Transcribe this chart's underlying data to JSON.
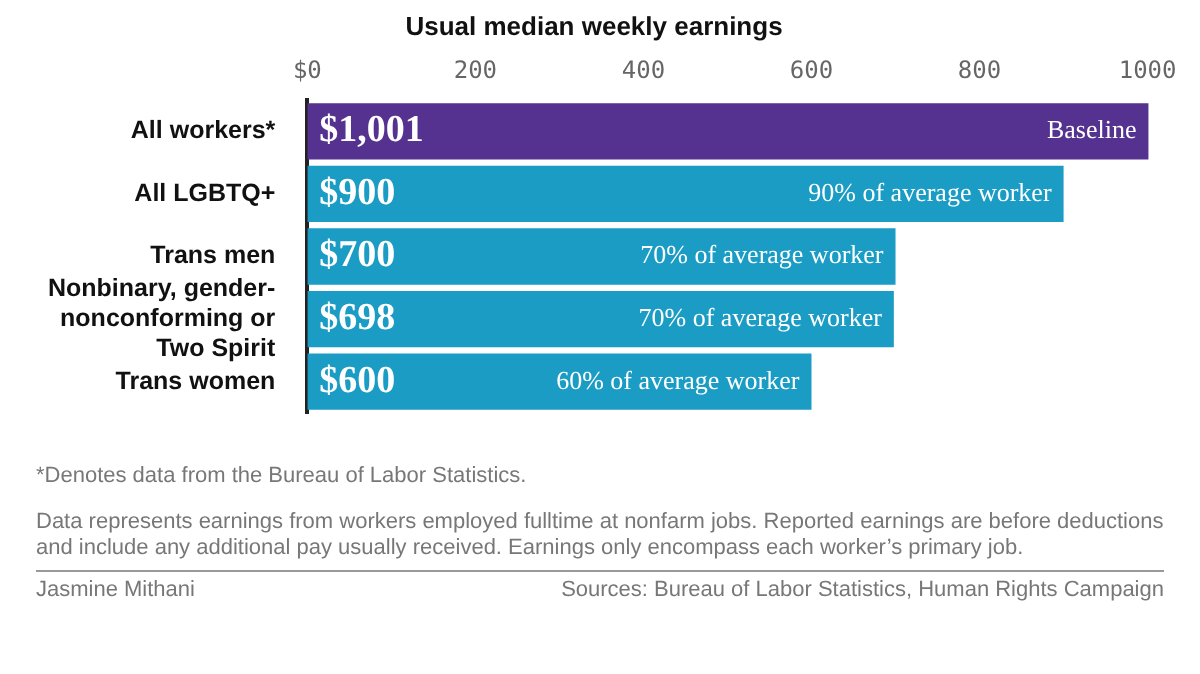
{
  "chart_data": {
    "type": "bar",
    "orientation": "horizontal",
    "title": "Usual median weekly earnings",
    "categories": [
      "All workers*",
      "All LGBTQ+",
      "Trans men",
      "Nonbinary, gender-nonconforming or Two Spirit",
      "Trans women"
    ],
    "values": [
      1001,
      900,
      700,
      698,
      600
    ],
    "colors": [
      "#553190",
      "#1a9cc4",
      "#1a9cc4",
      "#1a9cc4",
      "#1a9cc4"
    ],
    "value_labels": [
      "$1,001",
      "$900",
      "$700",
      "$698",
      "$600"
    ],
    "xlim": [
      0,
      1010
    ],
    "xticks": [
      {
        "value": 0,
        "label": "$0"
      },
      200,
      400,
      600,
      800,
      1000
    ],
    "grid": false,
    "legend": false,
    "annotations": [
      {
        "text": "Baseline",
        "x": 1001,
        "y": "All workers*"
      },
      {
        "text": "90% of average worker",
        "x": 900,
        "y": "All LGBTQ+"
      },
      {
        "text": "70% of average worker",
        "x": 700,
        "y": "Trans men"
      },
      {
        "text": "70% of average worker",
        "x": 698,
        "y": "Nonbinary, gender-nonconforming or Two Spirit"
      },
      {
        "text": "60% of average worker",
        "x": 600,
        "y": "Trans women"
      },
      "*Denotes data from the Bureau of Labor Statistics.",
      "Data represents earnings from workers employed fulltime at nonfarm jobs. Reported earnings are before deductions and include any additional pay usually received. Earnings only encompass each worker’s primary job.",
      "Jasmine Mithani",
      "Sources: Bureau of Labor Statistics, Human Rights Campaign"
    ]
  }
}
